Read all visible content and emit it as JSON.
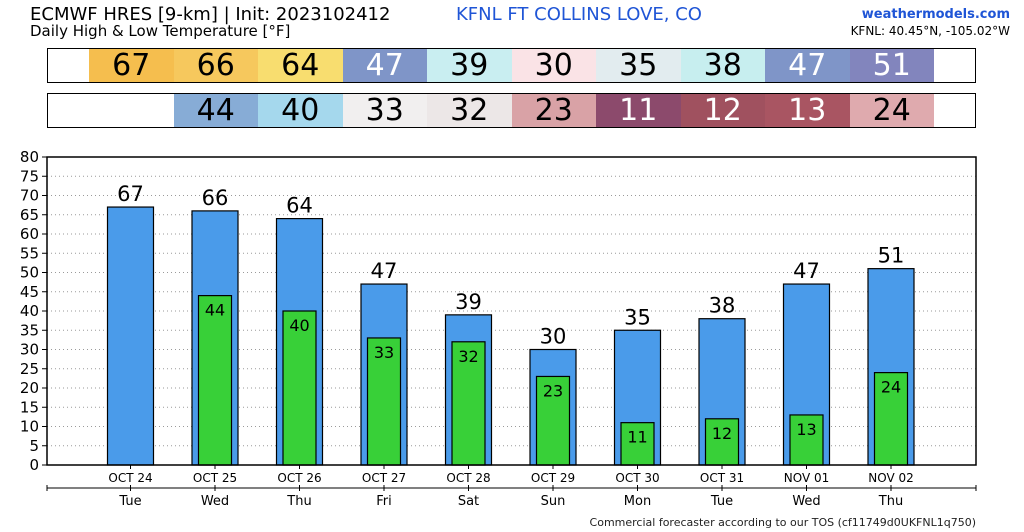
{
  "header": {
    "model": "ECMWF HRES [9-km] | Init: 2023102412",
    "station": "KFNL FT COLLINS LOVE, CO",
    "subtitle": "Daily High & Low Temperature [°F]",
    "brand": "weathermodels.com",
    "coords": "KFNL: 40.45°N, -105.02°W"
  },
  "footer": "Commercial forecaster according to our TOS (cf11749d0UKFNL1q750)",
  "high_strip": [
    {
      "value": "67",
      "color": "#f5be4e",
      "text": "light"
    },
    {
      "value": "66",
      "color": "#f6c85d",
      "text": "light"
    },
    {
      "value": "64",
      "color": "#f8dd6f",
      "text": "light"
    },
    {
      "value": "47",
      "color": "#7f95c8",
      "text": "dark"
    },
    {
      "value": "39",
      "color": "#c9eef1",
      "text": "light"
    },
    {
      "value": "30",
      "color": "#fae3e6",
      "text": "light"
    },
    {
      "value": "35",
      "color": "#e2ecef",
      "text": "light"
    },
    {
      "value": "38",
      "color": "#c7eeef",
      "text": "light"
    },
    {
      "value": "47",
      "color": "#7f95c8",
      "text": "dark"
    },
    {
      "value": "51",
      "color": "#8285bd",
      "text": "dark"
    }
  ],
  "low_strip": [
    {
      "value": "",
      "color": "#ffffff",
      "text": "light"
    },
    {
      "value": "44",
      "color": "#87acd6",
      "text": "light"
    },
    {
      "value": "40",
      "color": "#a5d8ed",
      "text": "light"
    },
    {
      "value": "33",
      "color": "#f1efef",
      "text": "light"
    },
    {
      "value": "32",
      "color": "#ece7e7",
      "text": "light"
    },
    {
      "value": "23",
      "color": "#d9a2a6",
      "text": "light"
    },
    {
      "value": "11",
      "color": "#8c4a6c",
      "text": "dark"
    },
    {
      "value": "12",
      "color": "#a0515f",
      "text": "dark"
    },
    {
      "value": "13",
      "color": "#a95562",
      "text": "dark"
    },
    {
      "value": "24",
      "color": "#dfaaae",
      "text": "light"
    }
  ],
  "chart_data": {
    "type": "bar",
    "categories": [
      "OCT 24",
      "OCT 25",
      "OCT 26",
      "OCT 27",
      "OCT 28",
      "OCT 29",
      "OCT 30",
      "OCT 31",
      "NOV 01",
      "NOV 02"
    ],
    "weekdays": [
      "Tue",
      "Wed",
      "Thu",
      "Fri",
      "Sat",
      "Sun",
      "Mon",
      "Tue",
      "Wed",
      "Thu"
    ],
    "series": [
      {
        "values": [
          67,
          66,
          64,
          47,
          39,
          30,
          35,
          38,
          47,
          51
        ],
        "color": "#4a9bea"
      },
      {
        "values": [
          null,
          44,
          40,
          33,
          32,
          23,
          11,
          12,
          13,
          24
        ],
        "color": "#38d038"
      }
    ],
    "ylim": [
      0,
      80
    ],
    "ytick_step": 5,
    "grid": true,
    "title": "",
    "xlabel": "",
    "ylabel": ""
  }
}
